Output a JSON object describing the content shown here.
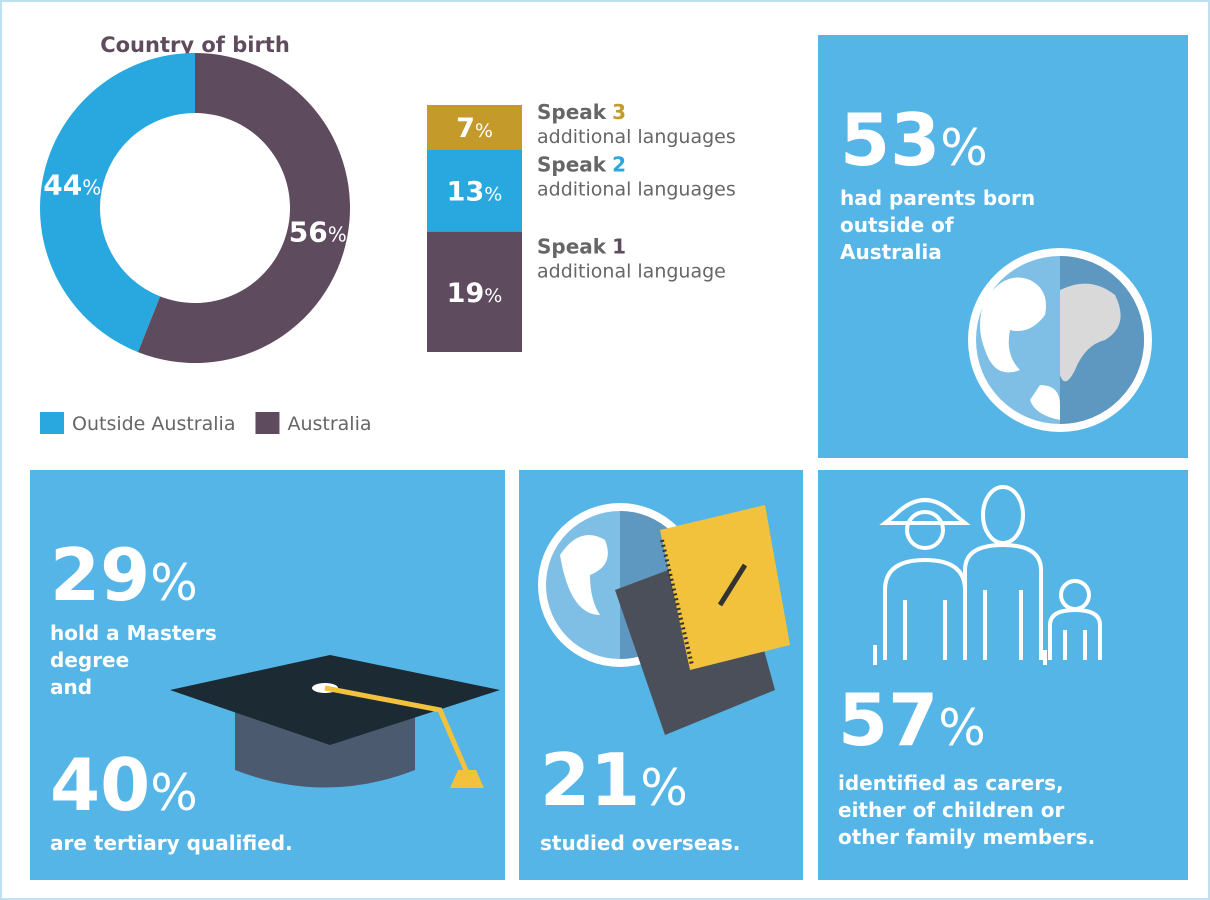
{
  "chart_data": [
    {
      "type": "donut",
      "title": "Country of birth",
      "categories": [
        "Outside Australia",
        "Australia"
      ],
      "values": [
        44,
        56
      ],
      "colors": [
        "#29a8e0",
        "#5f4b5e"
      ],
      "unit": "%",
      "legend": "bottom"
    },
    {
      "type": "stacked_bar",
      "values": [
        7,
        13,
        19
      ],
      "unit": "%",
      "colors": [
        "#c49a2a",
        "#29a8e0",
        "#5f4b5e"
      ],
      "labels": [
        {
          "prefix": "Speak",
          "count": "3",
          "suffix": "additional languages"
        },
        {
          "prefix": "Speak",
          "count": "2",
          "suffix": "additional languages"
        },
        {
          "prefix": "Speak",
          "count": "1",
          "suffix": "additional language"
        }
      ]
    }
  ],
  "tiles": [
    {
      "stats": [
        {
          "value": 53,
          "unit": "%",
          "lines": [
            "had parents born",
            "outside of",
            "Australia"
          ]
        }
      ]
    },
    {
      "stats": [
        {
          "value": 29,
          "unit": "%",
          "lines": [
            "hold a Masters",
            "degree",
            "and"
          ]
        },
        {
          "value": 40,
          "unit": "%",
          "lines": [
            "are tertiary qualified."
          ]
        }
      ]
    },
    {
      "stats": [
        {
          "value": 21,
          "unit": "%",
          "lines": [
            "studied overseas."
          ]
        }
      ]
    },
    {
      "stats": [
        {
          "value": 57,
          "unit": "%",
          "lines": [
            "identified as carers,",
            "either of children or",
            "other family members."
          ]
        }
      ]
    }
  ]
}
